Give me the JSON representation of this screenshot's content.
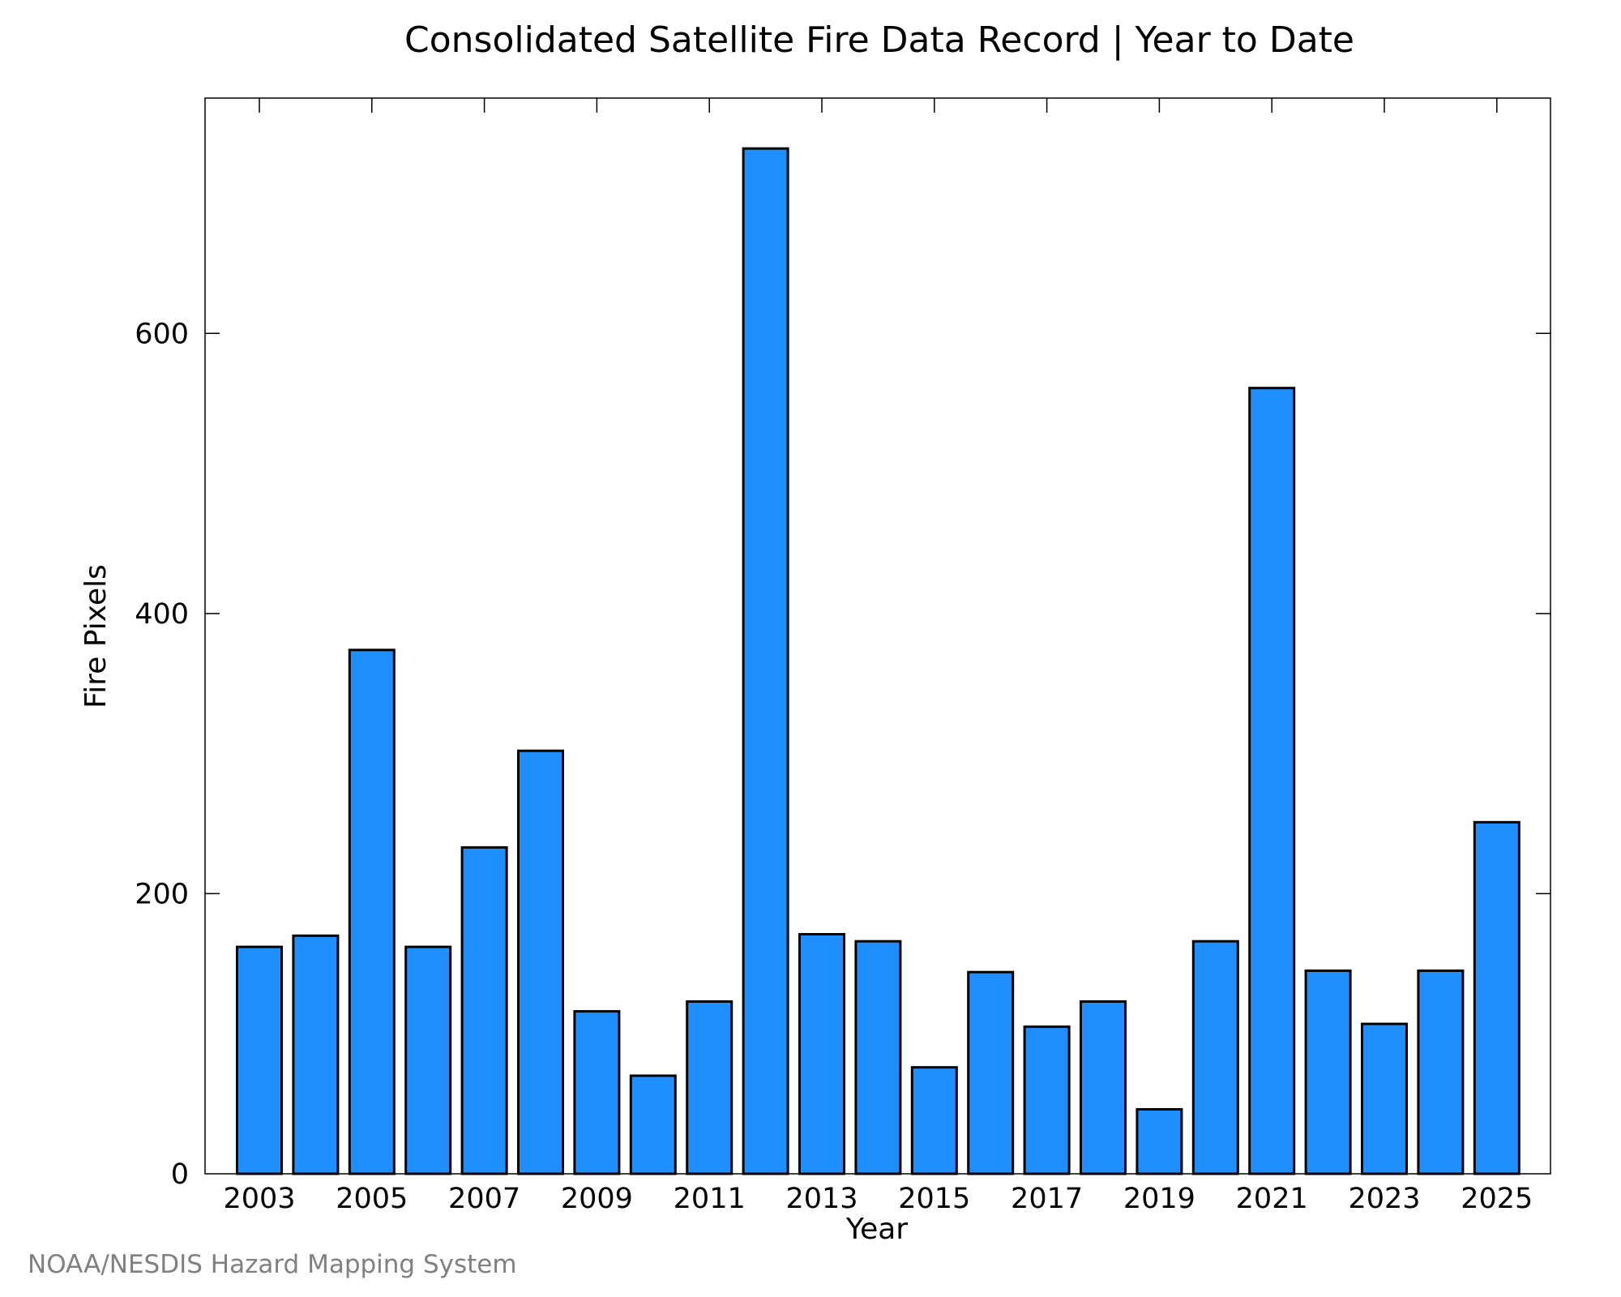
{
  "chart_data": {
    "type": "bar",
    "title": "Consolidated Satellite Fire Data Record | Year to Date",
    "xlabel": "Year",
    "ylabel": "Fire Pixels",
    "categories": [
      "2003",
      "2004",
      "2005",
      "2006",
      "2007",
      "2008",
      "2009",
      "2010",
      "2011",
      "2012",
      "2013",
      "2014",
      "2015",
      "2016",
      "2017",
      "2018",
      "2019",
      "2020",
      "2021",
      "2022",
      "2023",
      "2024",
      "2025"
    ],
    "values": [
      162,
      170,
      374,
      162,
      233,
      302,
      116,
      70,
      123,
      732,
      171,
      166,
      76,
      144,
      105,
      123,
      46,
      166,
      561,
      145,
      107,
      145,
      251
    ],
    "x_tick_labels": [
      "2003",
      "2005",
      "2007",
      "2009",
      "2011",
      "2013",
      "2015",
      "2017",
      "2019",
      "2021",
      "2023",
      "2025"
    ],
    "y_ticks": [
      0,
      200,
      400,
      600
    ],
    "ylim": [
      0,
      768
    ],
    "grid": false,
    "legend": "none",
    "bar_color": "#1f8fff",
    "bar_edge_color": "#000000"
  },
  "credit": "NOAA/NESDIS Hazard Mapping System"
}
